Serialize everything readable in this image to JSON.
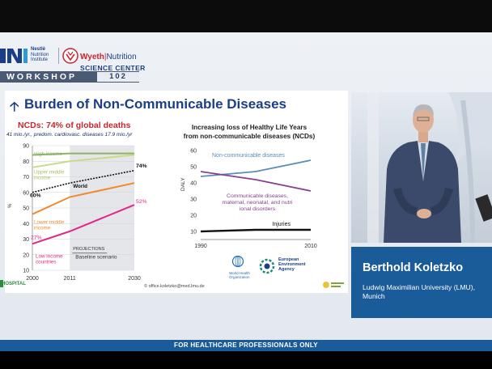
{
  "header": {
    "logo1": {
      "brand": "Nestlé",
      "line2": "Nutrition",
      "line3": "Institute"
    },
    "logo2": {
      "brand": "Wyeth",
      "brand_suffix": "Nutrition",
      "line2": "SCIENCE CENTER"
    },
    "workshop_label": "WORKSHOP",
    "workshop_number": "102"
  },
  "slide": {
    "title": "Burden of Non-Communicable Diseases",
    "left_heading": "NCDs: 74% of global deaths",
    "left_subheading": "41 mio./yr., predom. cardiovasc. diseases 17.9 mio./yr",
    "right_heading_line1": "Increasing loss of Healthy Life Years",
    "right_heading_line2": "from non-communicable diseases (NCDs)",
    "footnote": "© office.koletzko@med.lmu.de",
    "who_line1": "World Health",
    "who_line2": "Organization",
    "eea_line1": "European",
    "eea_line2": "Environment",
    "eea_line3": "Agency"
  },
  "chart_data": [
    {
      "type": "line",
      "y_ticks": [
        10,
        20,
        30,
        40,
        50,
        60,
        70,
        80,
        90
      ],
      "x_ticks": [
        "2000",
        "2011",
        "2030"
      ],
      "ylim": [
        10,
        90
      ],
      "xlim": [
        2000,
        2030
      ],
      "ylabel": "%",
      "projection_label": "PROJECTIONS",
      "scenario_label": "Baseline scenario",
      "projection_start": 2011,
      "annotations": [
        "60%",
        "74%",
        "27%",
        "52%"
      ],
      "series": [
        {
          "name": "High income",
          "color": "#8db36a",
          "x": [
            2000,
            2011,
            2030
          ],
          "values": [
            84,
            85,
            85
          ]
        },
        {
          "name": "Upper middle income",
          "color": "#c7dc8a",
          "x": [
            2000,
            2011,
            2030
          ],
          "values": [
            76,
            80,
            84
          ]
        },
        {
          "name": "World",
          "color": "#111111",
          "x": [
            2000,
            2011,
            2030
          ],
          "values": [
            60,
            66,
            74
          ]
        },
        {
          "name": "Lower middle income",
          "color": "#f08a2c",
          "x": [
            2000,
            2011,
            2030
          ],
          "values": [
            46,
            57,
            66
          ]
        },
        {
          "name": "Low income countries",
          "color": "#e2278a",
          "x": [
            2000,
            2011,
            2030
          ],
          "values": [
            27,
            35,
            52
          ]
        }
      ]
    },
    {
      "type": "line",
      "y_ticks": [
        10,
        20,
        30,
        40,
        50,
        60
      ],
      "x_ticks": [
        "1990",
        "2010"
      ],
      "ylim": [
        5,
        60
      ],
      "xlim": [
        1990,
        2010
      ],
      "ylabel": "DALY",
      "series": [
        {
          "name": "Non-communicable diseases",
          "color": "#5b8db5",
          "x": [
            1990,
            2000,
            2010
          ],
          "values": [
            44,
            47,
            54
          ]
        },
        {
          "name": "Communicable diseases, maternal, neonatal, and nutritional disorders",
          "color": "#8a3f8f",
          "x": [
            1990,
            2000,
            2010
          ],
          "values": [
            47,
            42,
            35
          ]
        },
        {
          "name": "Injuries",
          "color": "#111111",
          "x": [
            1990,
            2000,
            2010
          ],
          "values": [
            10,
            11,
            11
          ]
        }
      ]
    }
  ],
  "speaker": {
    "name": "Berthold Koletzko",
    "affiliation_line1": "Ludwig Maximilian University (LMU),",
    "affiliation_line2": "Munich"
  },
  "footer": {
    "disclaimer": "FOR HEALTHCARE PROFESSIONALS ONLY",
    "hospital": "HOSPITAL"
  }
}
